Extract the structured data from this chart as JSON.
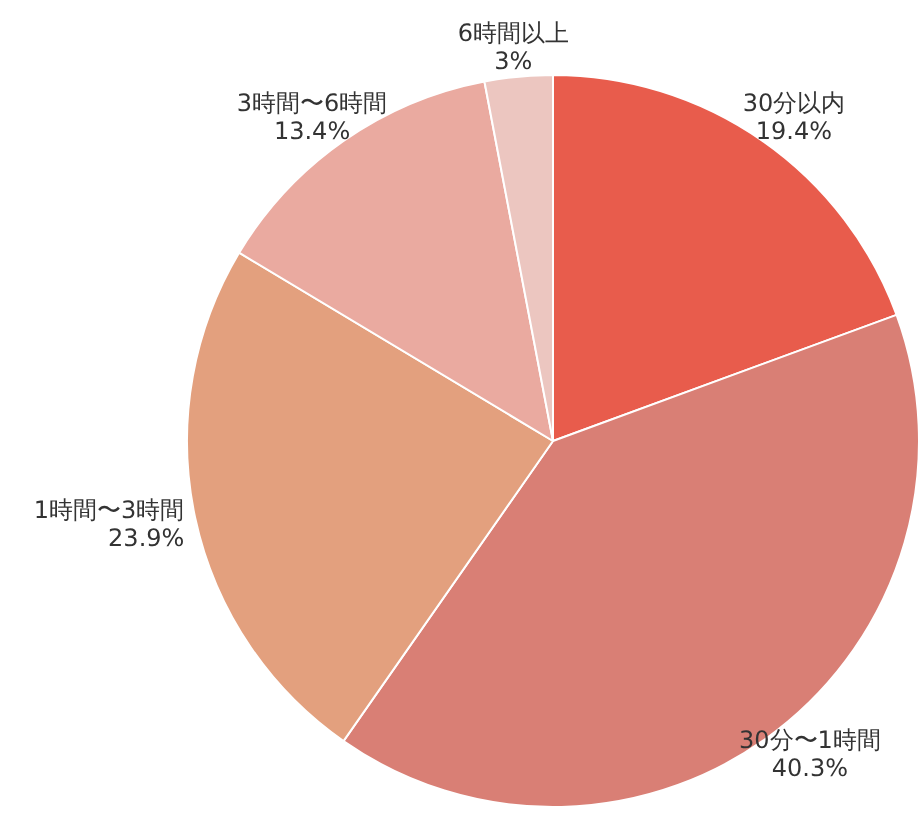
{
  "chart_data": {
    "type": "pie",
    "categories": [
      "30分以内",
      "30分〜1時間",
      "1時間〜3時間",
      "3時間〜6時間",
      "6時間以上"
    ],
    "values": [
      19.4,
      40.3,
      23.9,
      13.4,
      3
    ],
    "colors": [
      "#e85c4c",
      "#d97f75",
      "#e3a07e",
      "#eaaaa0",
      "#ecc6c0"
    ],
    "value_labels": [
      "19.4%",
      "40.3%",
      "23.9%",
      "13.4%",
      "3%"
    ]
  }
}
